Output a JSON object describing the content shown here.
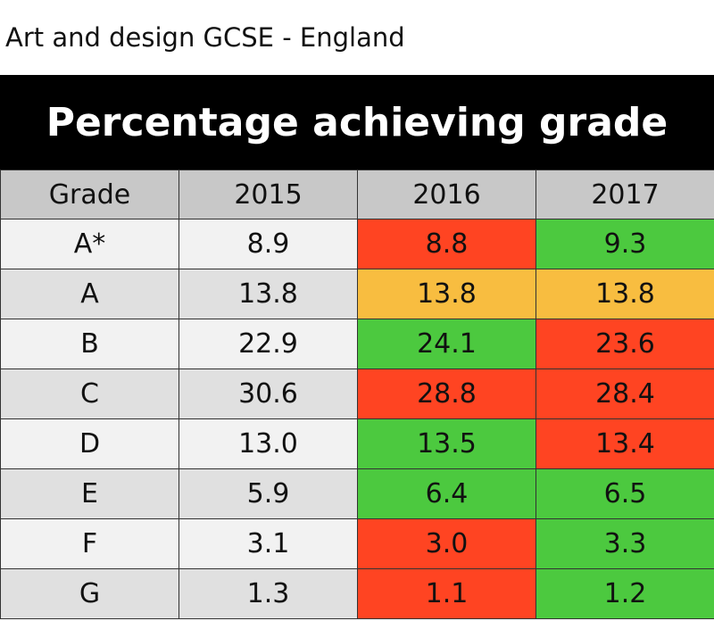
{
  "subtitle": "Art and design GCSE - England",
  "chart_data": {
    "type": "table",
    "title": "Percentage achieving grade",
    "columns": [
      "Grade",
      "2015",
      "2016",
      "2017"
    ],
    "rows": [
      {
        "grade": "A*",
        "values": [
          "8.9",
          "8.8",
          "9.3"
        ],
        "status": [
          null,
          "decrease",
          "increase"
        ]
      },
      {
        "grade": "A",
        "values": [
          "13.8",
          "13.8",
          "13.8"
        ],
        "status": [
          null,
          "same",
          "same"
        ]
      },
      {
        "grade": "B",
        "values": [
          "22.9",
          "24.1",
          "23.6"
        ],
        "status": [
          null,
          "increase",
          "decrease"
        ]
      },
      {
        "grade": "C",
        "values": [
          "30.6",
          "28.8",
          "28.4"
        ],
        "status": [
          null,
          "decrease",
          "decrease"
        ]
      },
      {
        "grade": "D",
        "values": [
          "13.0",
          "13.5",
          "13.4"
        ],
        "status": [
          null,
          "increase",
          "decrease"
        ]
      },
      {
        "grade": "E",
        "values": [
          "5.9",
          "6.4",
          "6.5"
        ],
        "status": [
          null,
          "increase",
          "increase"
        ]
      },
      {
        "grade": "F",
        "values": [
          "3.1",
          "3.0",
          "3.3"
        ],
        "status": [
          null,
          "decrease",
          "increase"
        ]
      },
      {
        "grade": "G",
        "values": [
          "1.3",
          "1.1",
          "1.2"
        ],
        "status": [
          null,
          "decrease",
          "increase"
        ]
      }
    ]
  },
  "colors": {
    "increase": "#4cc93f",
    "decrease": "#ff4422",
    "same": "#f8bd40",
    "header_bg": "#c8c8c8",
    "banner_bg": "#000000"
  }
}
